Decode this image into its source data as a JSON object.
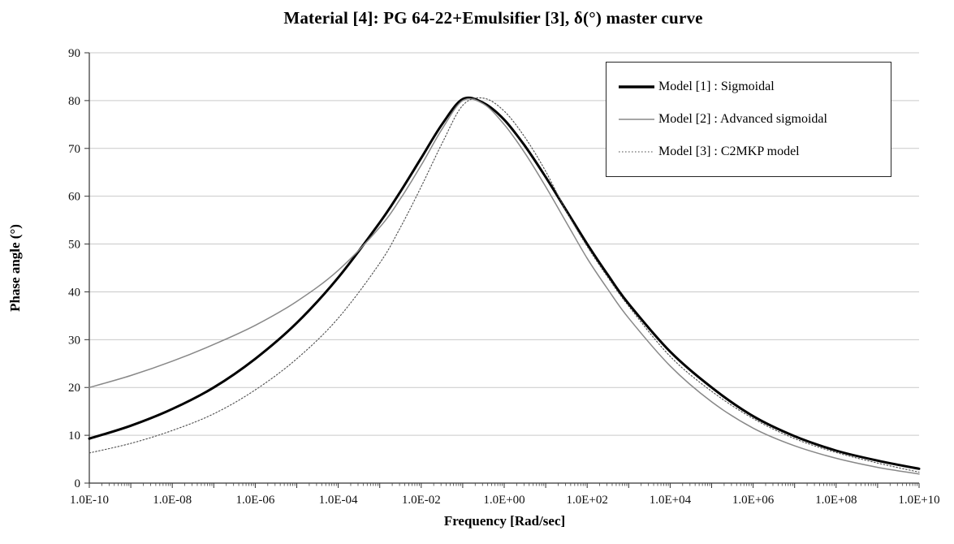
{
  "chart_data": {
    "type": "line",
    "title": "Material [4]: PG 64-22+Emulsifier [3], δ(°) master curve",
    "xlabel": "Frequency [Rad/sec]",
    "ylabel": "Phase angle (°)",
    "x_scale": "log10",
    "xlim": [
      -10,
      10
    ],
    "ylim": [
      0,
      90
    ],
    "grid": "horizontal",
    "legend_position": "top-right",
    "y_ticks": [
      0,
      10,
      20,
      30,
      40,
      50,
      60,
      70,
      80,
      90
    ],
    "x_tick_exponents": [
      -10,
      -8,
      -6,
      -4,
      -2,
      0,
      2,
      4,
      6,
      8,
      10
    ],
    "x_tick_labels": [
      "1.0E-10",
      "1.0E-08",
      "1.0E-06",
      "1.0E-04",
      "1.0E-02",
      "1.0E+00",
      "1.0E+02",
      "1.0E+04",
      "1.0E+06",
      "1.0E+08",
      "1.0E+10"
    ],
    "x": [
      -10,
      -9,
      -8,
      -7,
      -6,
      -5,
      -4,
      -3,
      -2.5,
      -2,
      -1.5,
      -1,
      -0.5,
      0,
      0.5,
      1,
      1.5,
      2,
      2.5,
      3,
      4,
      5,
      6,
      7,
      8,
      9,
      10
    ],
    "series": [
      {
        "label": "Model [1] : Sigmoidal",
        "style": {
          "color": "#000000",
          "width": 3,
          "dash": "solid"
        },
        "values": [
          9.3,
          12,
          15.5,
          20,
          26,
          33.5,
          43,
          54.5,
          61,
          68,
          75,
          80.3,
          79.5,
          76,
          70.5,
          64,
          57,
          50,
          43.5,
          37.5,
          27.5,
          20,
          14,
          9.8,
          6.8,
          4.7,
          3.0
        ]
      },
      {
        "label": "Model [2] : Advanced sigmoidal",
        "style": {
          "color": "#888888",
          "width": 1.5,
          "dash": "solid"
        },
        "values": [
          20,
          22.5,
          25.5,
          29,
          33,
          38,
          44.5,
          53.5,
          59.5,
          66.5,
          74,
          80.0,
          79.3,
          75,
          69,
          62,
          54.5,
          47,
          40.5,
          34.5,
          24.5,
          17,
          11.5,
          7.8,
          5.2,
          3.3,
          1.9
        ]
      },
      {
        "label": "Model [3] : C2MKP model",
        "style": {
          "color": "#4d4d4d",
          "width": 1.1,
          "dash": "dotted"
        },
        "values": [
          6.3,
          8.3,
          11,
          14.5,
          19.5,
          26,
          34.5,
          46,
          53.5,
          62,
          71,
          79,
          80.5,
          77.8,
          72.3,
          65.2,
          56.8,
          49.5,
          43,
          37,
          26.5,
          19.2,
          13.5,
          9.3,
          6.4,
          4.2,
          2.3
        ]
      }
    ]
  }
}
